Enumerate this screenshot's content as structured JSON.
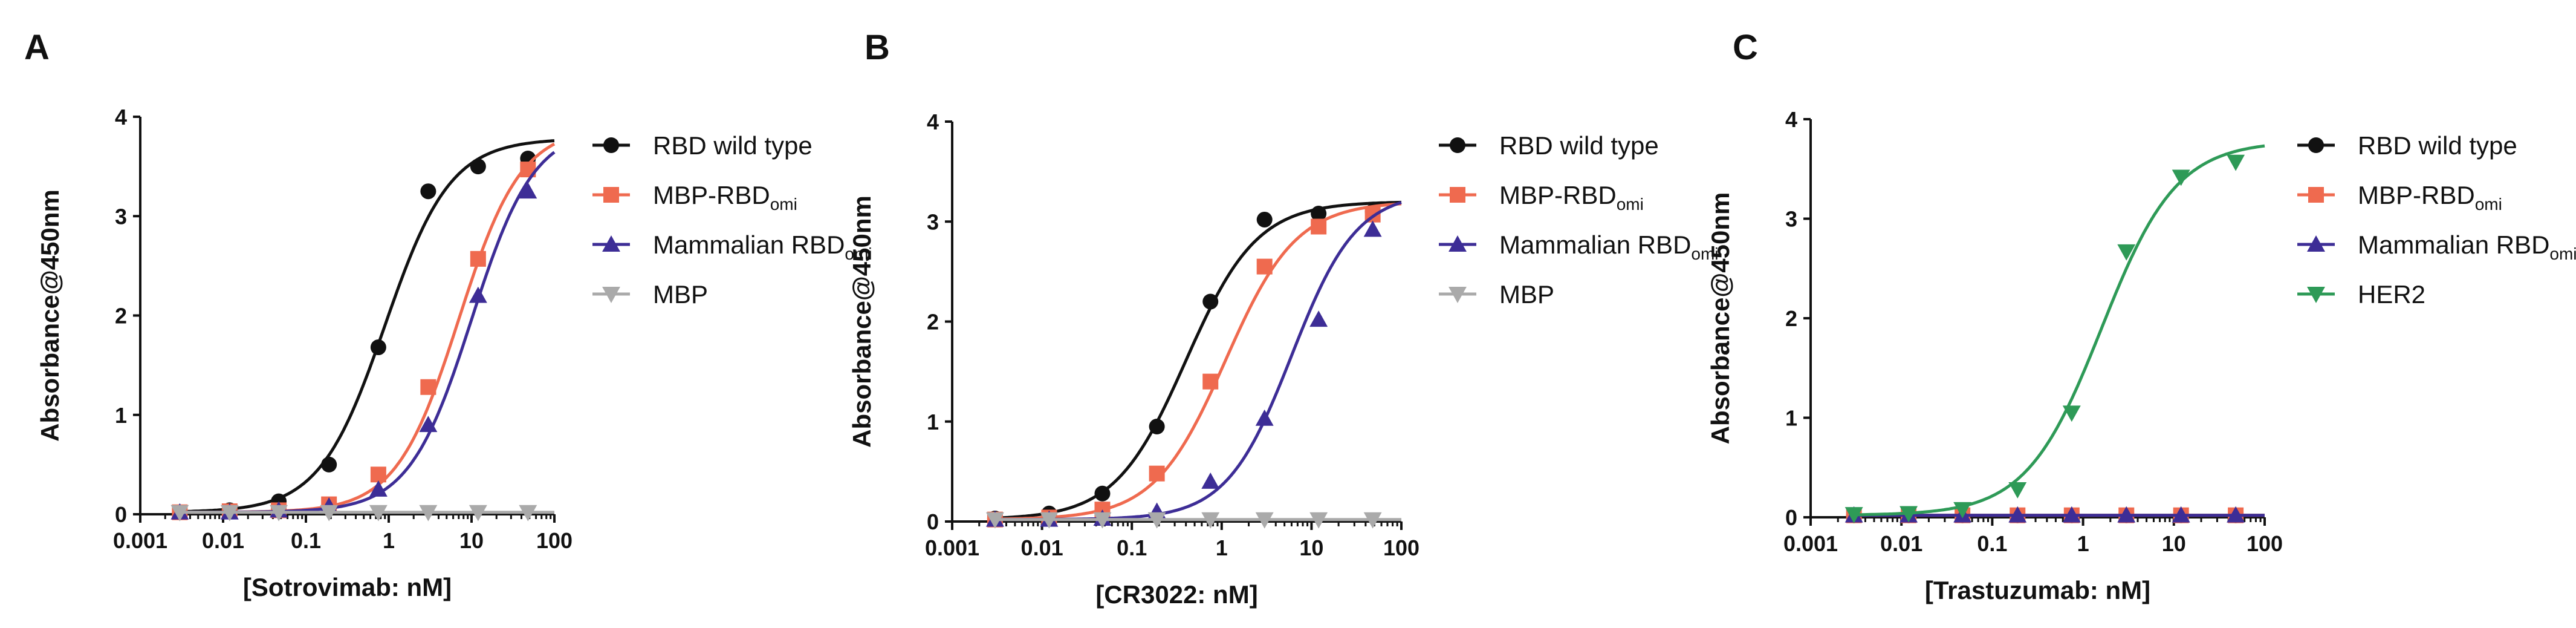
{
  "chart_data": [
    {
      "panel": "A",
      "type": "scatter",
      "fit": "four-parameter logistic curves",
      "xlabel": "[Sotrovimab: nM]",
      "ylabel": "Absorbance@450nm",
      "xscale": "log",
      "xlim": [
        0.001,
        100
      ],
      "ylim": [
        0,
        4
      ],
      "xticks": [
        "0.001",
        "0.01",
        "0.1",
        "1",
        "10",
        "100"
      ],
      "yticks": [
        "0",
        "1",
        "2",
        "3",
        "4"
      ],
      "legend_position": "right",
      "x": [
        0.003,
        0.012,
        0.047,
        0.19,
        0.75,
        3,
        12,
        48
      ],
      "series": [
        {
          "name": "RBD wild type",
          "name_sub": "",
          "color": "#111111",
          "marker": "circle",
          "values": [
            0.02,
            0.04,
            0.13,
            0.5,
            1.68,
            3.25,
            3.5,
            3.58
          ],
          "fit": {
            "bottom": 0.02,
            "top": 3.78,
            "ec50": 0.9,
            "hill": 1.1
          }
        },
        {
          "name": "MBP-RBD",
          "name_sub": "omi",
          "color": "#ef6a4f",
          "marker": "square",
          "values": [
            0.02,
            0.03,
            0.04,
            0.1,
            0.4,
            1.28,
            2.57,
            3.47
          ],
          "fit": {
            "bottom": 0.02,
            "top": 3.9,
            "ec50": 7,
            "hill": 1.15
          }
        },
        {
          "name": "Mammalian RBD",
          "name_sub": "omi",
          "color": "#3d2d96",
          "marker": "triangle-up",
          "values": [
            0.02,
            0.02,
            0.04,
            0.08,
            0.25,
            0.9,
            2.2,
            3.25
          ],
          "fit": {
            "bottom": 0.02,
            "top": 3.9,
            "ec50": 10,
            "hill": 1.15
          }
        },
        {
          "name": "MBP",
          "name_sub": "",
          "color": "#aaaaaa",
          "marker": "triangle-down",
          "values": [
            0.02,
            0.02,
            0.02,
            0.02,
            0.02,
            0.02,
            0.02,
            0.02
          ],
          "fit": {
            "bottom": 0.02,
            "top": 0.02,
            "ec50": 1,
            "hill": 1
          }
        }
      ]
    },
    {
      "panel": "B",
      "type": "scatter",
      "fit": "four-parameter logistic curves",
      "xlabel": "[CR3022: nM]",
      "ylabel": "Absorbance@450nm",
      "xscale": "log",
      "xlim": [
        0.001,
        100
      ],
      "ylim": [
        0,
        4
      ],
      "xticks": [
        "0.001",
        "0.01",
        "0.1",
        "1",
        "10",
        "100"
      ],
      "yticks": [
        "0",
        "1",
        "2",
        "3",
        "4"
      ],
      "legend_position": "right",
      "x": [
        0.003,
        0.012,
        0.047,
        0.19,
        0.75,
        3,
        12,
        48
      ],
      "series": [
        {
          "name": "RBD wild type",
          "name_sub": "",
          "color": "#111111",
          "marker": "circle",
          "values": [
            0.03,
            0.08,
            0.28,
            0.95,
            2.2,
            3.02,
            3.08,
            3.1
          ],
          "fit": {
            "bottom": 0.02,
            "top": 3.2,
            "ec50": 0.4,
            "hill": 1.1
          }
        },
        {
          "name": "MBP-RBD",
          "name_sub": "omi",
          "color": "#ef6a4f",
          "marker": "square",
          "values": [
            0.02,
            0.04,
            0.12,
            0.48,
            1.4,
            2.55,
            2.95,
            3.07
          ],
          "fit": {
            "bottom": 0.02,
            "top": 3.2,
            "ec50": 1.1,
            "hill": 1.1
          }
        },
        {
          "name": "Mammalian RBD",
          "name_sub": "omi",
          "color": "#3d2d96",
          "marker": "triangle-up",
          "values": [
            0.02,
            0.02,
            0.03,
            0.1,
            0.4,
            1.03,
            2.02,
            2.92
          ],
          "fit": {
            "bottom": 0.02,
            "top": 3.3,
            "ec50": 6,
            "hill": 1.2
          }
        },
        {
          "name": "MBP",
          "name_sub": "",
          "color": "#aaaaaa",
          "marker": "triangle-down",
          "values": [
            0.02,
            0.02,
            0.02,
            0.02,
            0.02,
            0.02,
            0.02,
            0.02
          ],
          "fit": {
            "bottom": 0.02,
            "top": 0.02,
            "ec50": 1,
            "hill": 1
          }
        }
      ]
    },
    {
      "panel": "C",
      "type": "scatter",
      "fit": "four-parameter logistic curves",
      "xlabel": "[Trastuzumab: nM]",
      "ylabel": "Absorbance@450nm",
      "xscale": "log",
      "xlim": [
        0.001,
        100
      ],
      "ylim": [
        0,
        4
      ],
      "xticks": [
        "0.001",
        "0.01",
        "0.1",
        "1",
        "10",
        "100"
      ],
      "yticks": [
        "0",
        "1",
        "2",
        "3",
        "4"
      ],
      "legend_position": "right",
      "x": [
        0.003,
        0.012,
        0.047,
        0.19,
        0.75,
        3,
        12,
        48
      ],
      "series": [
        {
          "name": "RBD wild type",
          "name_sub": "",
          "color": "#111111",
          "marker": "circle",
          "values": [
            0.02,
            0.02,
            0.02,
            0.02,
            0.02,
            0.02,
            0.02,
            0.02
          ],
          "fit": {
            "bottom": 0.02,
            "top": 0.02,
            "ec50": 1,
            "hill": 1
          }
        },
        {
          "name": "MBP-RBD",
          "name_sub": "omi",
          "color": "#ef6a4f",
          "marker": "square",
          "values": [
            0.02,
            0.02,
            0.02,
            0.02,
            0.02,
            0.02,
            0.02,
            0.02
          ],
          "fit": {
            "bottom": 0.02,
            "top": 0.02,
            "ec50": 1,
            "hill": 1
          }
        },
        {
          "name": "Mammalian RBD",
          "name_sub": "omi",
          "color": "#3d2d96",
          "marker": "triangle-up",
          "values": [
            0.02,
            0.02,
            0.02,
            0.02,
            0.02,
            0.02,
            0.02,
            0.02
          ],
          "fit": {
            "bottom": 0.02,
            "top": 0.02,
            "ec50": 1,
            "hill": 1
          }
        },
        {
          "name": "HER2",
          "name_sub": "",
          "color": "#2e9a57",
          "marker": "triangle-down",
          "values": [
            0.03,
            0.04,
            0.08,
            0.28,
            1.05,
            2.67,
            3.42,
            3.57
          ],
          "fit": {
            "bottom": 0.02,
            "top": 3.78,
            "ec50": 1.6,
            "hill": 1.05
          }
        }
      ]
    }
  ]
}
